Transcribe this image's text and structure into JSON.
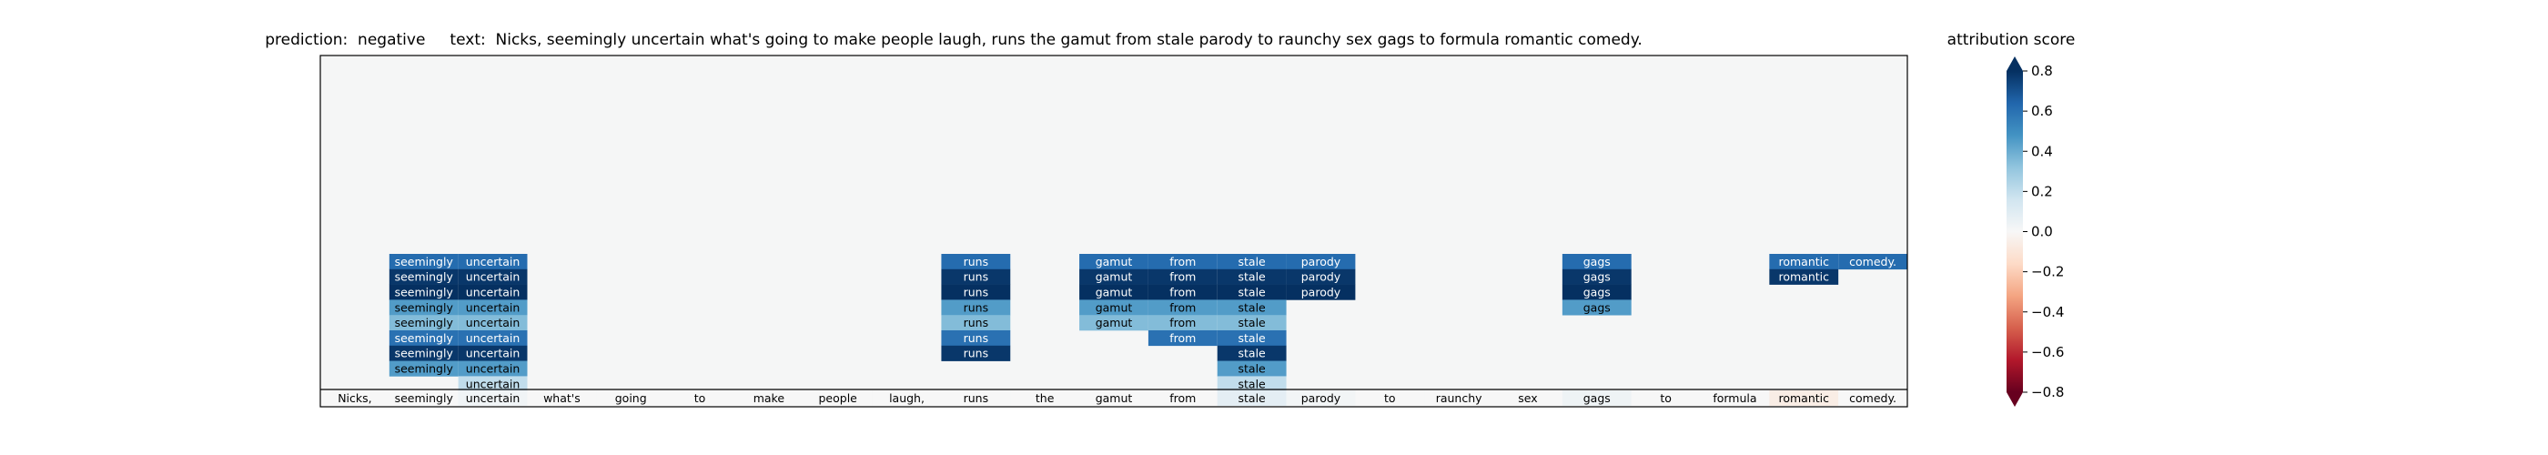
{
  "chart_data": {
    "type": "heatmap",
    "title": "prediction:  negative     text:  Nicks, seemingly uncertain what's going to make people laugh, runs the gamut from stale parody to raunchy sex gags to formula romantic comedy.",
    "tokens": [
      "Nicks,",
      "seemingly",
      "uncertain",
      "what's",
      "going",
      "to",
      "make",
      "people",
      "laugh,",
      "runs",
      "the",
      "gamut",
      "from",
      "stale",
      "parody",
      "to",
      "raunchy",
      "sex",
      "gags",
      "to",
      "formula",
      "romantic",
      "comedy."
    ],
    "token_scores": [
      0.0,
      0.0,
      0.03,
      0.0,
      0.0,
      0.0,
      0.0,
      0.0,
      0.0,
      0.0,
      0.0,
      0.0,
      0.0,
      0.08,
      0.02,
      0.0,
      0.0,
      0.0,
      0.04,
      0.0,
      0.0,
      -0.06,
      0.0
    ],
    "attribution_rows": [
      [
        {
          "token": 1,
          "label": "seemingly",
          "value": 0.62
        },
        {
          "token": 2,
          "label": "uncertain",
          "value": 0.62
        },
        {
          "token": 9,
          "label": "runs",
          "value": 0.62
        },
        {
          "token": 11,
          "label": "gamut",
          "value": 0.62
        },
        {
          "token": 12,
          "label": "from",
          "value": 0.62
        },
        {
          "token": 13,
          "label": "stale",
          "value": 0.62
        },
        {
          "token": 14,
          "label": "parody",
          "value": 0.62
        },
        {
          "token": 18,
          "label": "gags",
          "value": 0.62
        },
        {
          "token": 21,
          "label": "romantic",
          "value": 0.62
        },
        {
          "token": 22,
          "label": "comedy.",
          "value": 0.62
        }
      ],
      [
        {
          "token": 1,
          "label": "seemingly",
          "value": 0.78
        },
        {
          "token": 2,
          "label": "uncertain",
          "value": 0.78
        },
        {
          "token": 9,
          "label": "runs",
          "value": 0.78
        },
        {
          "token": 11,
          "label": "gamut",
          "value": 0.78
        },
        {
          "token": 12,
          "label": "from",
          "value": 0.78
        },
        {
          "token": 13,
          "label": "stale",
          "value": 0.78
        },
        {
          "token": 14,
          "label": "parody",
          "value": 0.78
        },
        {
          "token": 18,
          "label": "gags",
          "value": 0.78
        },
        {
          "token": 21,
          "label": "romantic",
          "value": 0.78
        }
      ],
      [
        {
          "token": 1,
          "label": "seemingly",
          "value": 0.85
        },
        {
          "token": 2,
          "label": "uncertain",
          "value": 0.85
        },
        {
          "token": 9,
          "label": "runs",
          "value": 0.85
        },
        {
          "token": 11,
          "label": "gamut",
          "value": 0.85
        },
        {
          "token": 12,
          "label": "from",
          "value": 0.85
        },
        {
          "token": 13,
          "label": "stale",
          "value": 0.85
        },
        {
          "token": 14,
          "label": "parody",
          "value": 0.85
        },
        {
          "token": 18,
          "label": "gags",
          "value": 0.85
        }
      ],
      [
        {
          "token": 1,
          "label": "seemingly",
          "value": 0.45
        },
        {
          "token": 2,
          "label": "uncertain",
          "value": 0.45
        },
        {
          "token": 9,
          "label": "runs",
          "value": 0.45
        },
        {
          "token": 11,
          "label": "gamut",
          "value": 0.45
        },
        {
          "token": 12,
          "label": "from",
          "value": 0.45
        },
        {
          "token": 13,
          "label": "stale",
          "value": 0.45
        },
        {
          "token": 18,
          "label": "gags",
          "value": 0.45
        }
      ],
      [
        {
          "token": 1,
          "label": "seemingly",
          "value": 0.35
        },
        {
          "token": 2,
          "label": "uncertain",
          "value": 0.35
        },
        {
          "token": 9,
          "label": "runs",
          "value": 0.35
        },
        {
          "token": 11,
          "label": "gamut",
          "value": 0.35
        },
        {
          "token": 12,
          "label": "from",
          "value": 0.35
        },
        {
          "token": 13,
          "label": "stale",
          "value": 0.35
        }
      ],
      [
        {
          "token": 1,
          "label": "seemingly",
          "value": 0.6
        },
        {
          "token": 2,
          "label": "uncertain",
          "value": 0.6
        },
        {
          "token": 9,
          "label": "runs",
          "value": 0.6
        },
        {
          "token": 12,
          "label": "from",
          "value": 0.6
        },
        {
          "token": 13,
          "label": "stale",
          "value": 0.6
        }
      ],
      [
        {
          "token": 1,
          "label": "seemingly",
          "value": 0.78
        },
        {
          "token": 2,
          "label": "uncertain",
          "value": 0.78
        },
        {
          "token": 9,
          "label": "runs",
          "value": 0.78
        },
        {
          "token": 13,
          "label": "stale",
          "value": 0.78
        }
      ],
      [
        {
          "token": 1,
          "label": "seemingly",
          "value": 0.45
        },
        {
          "token": 2,
          "label": "uncertain",
          "value": 0.45
        },
        {
          "token": 13,
          "label": "stale",
          "value": 0.45
        }
      ],
      [
        {
          "token": 2,
          "label": "uncertain",
          "value": 0.2
        },
        {
          "token": 13,
          "label": "stale",
          "value": 0.2
        }
      ]
    ],
    "colorbar": {
      "label": "attribution score",
      "range": [
        -0.8,
        0.8
      ],
      "ticks": [
        0.8,
        0.6,
        0.4,
        0.2,
        0.0,
        -0.2,
        -0.4,
        -0.6,
        -0.8
      ],
      "tick_labels": [
        "0.8",
        "0.6",
        "0.4",
        "0.2",
        "0.0",
        "−0.2",
        "−0.4",
        "−0.6",
        "−0.8"
      ],
      "colormap": "RdBu",
      "extend": "both"
    },
    "background_color": "#f5f6f6"
  }
}
